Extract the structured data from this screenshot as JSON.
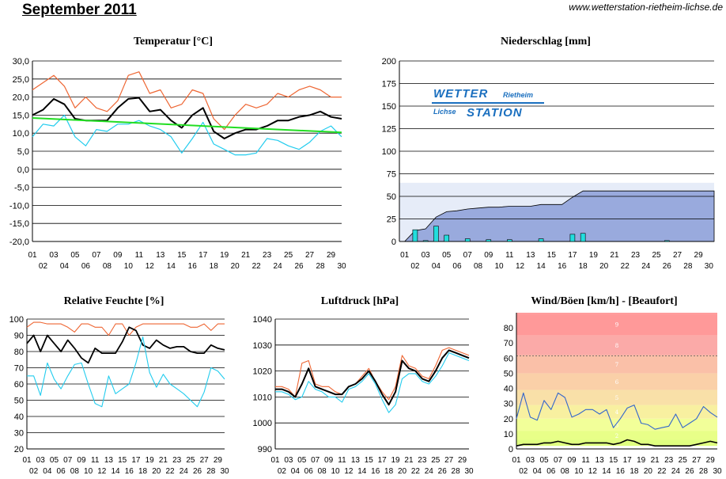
{
  "header": {
    "title": "September 2011",
    "site_url": "www.wetterstation-rietheim-lichse.de"
  },
  "colors": {
    "max": "#ee6633",
    "mean": "#000000",
    "min": "#22ccee",
    "trend": "#22dd22",
    "rain_bar": "#22dddd",
    "rain_cum": "#99aadd",
    "grid": "#000000"
  },
  "logo": {
    "word1": "WETTER",
    "word2": "STATION",
    "place1": "Rietheim",
    "place2": "Lichse"
  },
  "x_days": [
    "01",
    "02",
    "03",
    "04",
    "05",
    "06",
    "07",
    "08",
    "09",
    "10",
    "11",
    "12",
    "13",
    "14",
    "15",
    "16",
    "17",
    "18",
    "19",
    "20",
    "21",
    "22",
    "23",
    "24",
    "25",
    "26",
    "27",
    "28",
    "29",
    "30"
  ],
  "chart_data": [
    {
      "id": "temperature",
      "type": "line",
      "title": "Temperatur [°C]",
      "ylim": [
        -20,
        30
      ],
      "y_ticks": [
        "30,0",
        "25,0",
        "20,0",
        "15,0",
        "10,0",
        "5,0",
        "0,0",
        "-5,0",
        "-10,0",
        "-15,0",
        "-20,0"
      ],
      "series": [
        {
          "name": "max",
          "values": [
            22,
            24,
            26,
            23,
            17,
            20,
            17,
            16,
            19,
            26,
            27,
            21,
            22,
            17,
            18,
            22,
            21,
            14,
            11,
            15,
            18,
            17,
            18,
            21,
            20,
            22,
            23,
            22,
            20,
            20
          ]
        },
        {
          "name": "mean",
          "values": [
            15,
            16.5,
            19.5,
            18,
            14,
            13.5,
            13.5,
            13.5,
            17,
            19.5,
            19.8,
            16,
            16.5,
            13.5,
            11.5,
            15,
            17,
            10.5,
            8.5,
            10,
            11,
            11,
            12,
            13.5,
            13.5,
            14.5,
            15,
            16,
            14.5,
            14
          ]
        },
        {
          "name": "min",
          "values": [
            9,
            12.5,
            12,
            15,
            9,
            6.5,
            11,
            10.5,
            12.5,
            12.5,
            13.5,
            12,
            11,
            9,
            4.5,
            8.5,
            13,
            7,
            5.5,
            4,
            4,
            4.5,
            8.5,
            8,
            6.5,
            5.5,
            7.5,
            10.5,
            12,
            9
          ]
        },
        {
          "name": "trend",
          "values": [
            14.2,
            10.2
          ]
        }
      ]
    },
    {
      "id": "precipitation",
      "type": "bar",
      "title": "Niederschlag [mm]",
      "ylim": [
        0,
        200
      ],
      "y_ticks": [
        "200",
        "175",
        "150",
        "125",
        "100",
        "75",
        "50",
        "25",
        "0"
      ],
      "daily": [
        0,
        13,
        1,
        17,
        7,
        0,
        3,
        0,
        2,
        0,
        2,
        0,
        0,
        3,
        0,
        0,
        8,
        9,
        0,
        0,
        0,
        0,
        0,
        0,
        0,
        1,
        0,
        0,
        0,
        0
      ],
      "cumulative": [
        0,
        13,
        14,
        31,
        38,
        38,
        41,
        41,
        43,
        43,
        45,
        45,
        45,
        48,
        48,
        48,
        56,
        65,
        65,
        65,
        65,
        65,
        65,
        65,
        65,
        66,
        66,
        66,
        66,
        66
      ],
      "cumulative_display": [
        0,
        12,
        14,
        27,
        33,
        34,
        36,
        37,
        38,
        38,
        39,
        39,
        39,
        41,
        41,
        41,
        49,
        56,
        56,
        56,
        56,
        56,
        56,
        56,
        56,
        56,
        56,
        56,
        56,
        56
      ],
      "background_level": 65
    },
    {
      "id": "humidity",
      "type": "line",
      "title": "Relative Feuchte [%]",
      "ylim": [
        20,
        100
      ],
      "y_ticks": [
        "100",
        "90",
        "80",
        "70",
        "60",
        "50",
        "40",
        "30",
        "20"
      ],
      "series": [
        {
          "name": "max",
          "values": [
            95,
            98,
            98,
            97,
            97,
            97,
            95,
            92,
            97,
            97,
            95,
            95,
            90,
            97,
            97,
            90,
            95,
            97,
            97,
            97,
            97,
            97,
            97,
            97,
            95,
            95,
            97,
            93,
            97,
            97
          ]
        },
        {
          "name": "mean",
          "values": [
            85,
            90,
            80,
            90,
            85,
            80,
            87,
            82,
            76,
            73,
            82,
            79,
            79,
            79,
            86,
            95,
            93,
            84,
            82,
            87,
            84,
            82,
            83,
            83,
            80,
            79,
            79,
            84,
            82,
            81
          ]
        },
        {
          "name": "min",
          "values": [
            65,
            65,
            53,
            73,
            63,
            57,
            65,
            72,
            73,
            60,
            48,
            46,
            65,
            54,
            57,
            60,
            73,
            89,
            67,
            58,
            66,
            60,
            57,
            54,
            50,
            46,
            55,
            70,
            68,
            63
          ]
        }
      ]
    },
    {
      "id": "pressure",
      "type": "line",
      "title": "Luftdruck [hPa]",
      "ylim": [
        990,
        1040
      ],
      "y_ticks": [
        "1040",
        "1030",
        "1020",
        "1010",
        "1000",
        "990"
      ],
      "series": [
        {
          "name": "max",
          "values": [
            1014,
            1014,
            1013,
            1010,
            1023,
            1024,
            1015,
            1014,
            1014,
            1012,
            1011,
            1014,
            1015,
            1018,
            1021,
            1016,
            1012,
            1009,
            1014,
            1026,
            1022,
            1021,
            1018,
            1017,
            1022,
            1028,
            1029,
            1028,
            1027,
            1026
          ]
        },
        {
          "name": "mean",
          "values": [
            1013,
            1013,
            1012,
            1010,
            1015,
            1021,
            1014,
            1013,
            1012,
            1011,
            1011,
            1014,
            1015,
            1017,
            1020,
            1016,
            1011,
            1007,
            1012,
            1024,
            1021,
            1020,
            1017,
            1016,
            1020,
            1025,
            1028,
            1027,
            1026,
            1025
          ]
        },
        {
          "name": "min",
          "values": [
            1012,
            1012,
            1011,
            1009,
            1010,
            1016,
            1013,
            1012,
            1010,
            1010,
            1008,
            1013,
            1014,
            1016,
            1019,
            1015,
            1009,
            1004,
            1007,
            1017,
            1019,
            1019,
            1016,
            1015,
            1018,
            1022,
            1027,
            1026,
            1025,
            1024
          ]
        }
      ]
    },
    {
      "id": "wind",
      "type": "line",
      "title": "Wind/Böen [km/h] - [Beaufort]",
      "ylim": [
        0,
        90
      ],
      "y_ticks": [
        "80",
        "70",
        "60",
        "50",
        "40",
        "30",
        "20",
        "10",
        "0"
      ],
      "beaufort_labels": [
        "9",
        "8",
        "7",
        "6",
        "5",
        "4",
        "3",
        "2"
      ],
      "beaufort_edges": [
        2,
        6,
        12,
        20,
        29,
        39,
        50,
        62,
        75,
        89
      ],
      "beaufort_colors": [
        "#dfff7f",
        "#dfff7f",
        "#e8ff88",
        "#f2ff99",
        "#f8f0a0",
        "#f9e0a8",
        "#fad0a8",
        "#fac0a8",
        "#fbaaa8",
        "#ff9999"
      ],
      "series": [
        {
          "name": "gusts",
          "values": [
            20,
            37,
            21,
            19,
            32,
            26,
            37,
            34,
            21,
            23,
            26,
            26,
            23,
            26,
            14,
            20,
            27,
            29,
            17,
            16,
            13,
            14,
            15,
            23,
            14,
            17,
            20,
            28,
            24,
            21
          ]
        },
        {
          "name": "mean",
          "values": [
            2,
            3,
            3,
            3,
            4,
            4,
            5,
            4,
            3,
            3,
            4,
            4,
            4,
            4,
            3,
            4,
            6,
            5,
            3,
            3,
            2,
            2,
            2,
            2,
            2,
            2,
            3,
            4,
            5,
            4
          ]
        }
      ]
    }
  ]
}
